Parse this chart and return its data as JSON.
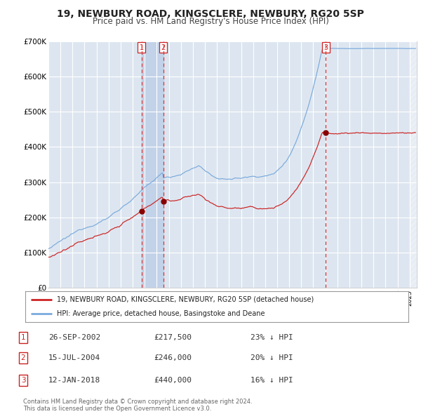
{
  "title": "19, NEWBURY ROAD, KINGSCLERE, NEWBURY, RG20 5SP",
  "subtitle": "Price paid vs. HM Land Registry's House Price Index (HPI)",
  "title_fontsize": 10,
  "subtitle_fontsize": 8.5,
  "background_color": "#ffffff",
  "plot_bg_color": "#dde6f0",
  "grid_color": "#ffffff",
  "ylim": [
    0,
    700000
  ],
  "yticks": [
    0,
    100000,
    200000,
    300000,
    400000,
    500000,
    600000,
    700000
  ],
  "ytick_labels": [
    "£0",
    "£100K",
    "£200K",
    "£300K",
    "£400K",
    "£500K",
    "£600K",
    "£700K"
  ],
  "x_start_year": 1995,
  "x_end_year": 2025,
  "hpi_line_color": "#7aaadd",
  "price_line_color": "#cc2222",
  "marker_color": "#880000",
  "dashed_line_color": "#dd3333",
  "vspan_color": "#c0d0e8",
  "t1": 2002.73,
  "t2": 2004.54,
  "t3": 2018.04,
  "p1": 217500,
  "p2": 246000,
  "p3": 440000,
  "legend_line1": "19, NEWBURY ROAD, KINGSCLERE, NEWBURY, RG20 5SP (detached house)",
  "legend_line2": "HPI: Average price, detached house, Basingstoke and Deane",
  "footnote": "Contains HM Land Registry data © Crown copyright and database right 2024.\nThis data is licensed under the Open Government Licence v3.0.",
  "table_rows": [
    [
      "1",
      "26-SEP-2002",
      "£217,500",
      "23% ↓ HPI"
    ],
    [
      "2",
      "15-JUL-2004",
      "£246,000",
      "20% ↓ HPI"
    ],
    [
      "3",
      "12-JAN-2018",
      "£440,000",
      "16% ↓ HPI"
    ]
  ]
}
